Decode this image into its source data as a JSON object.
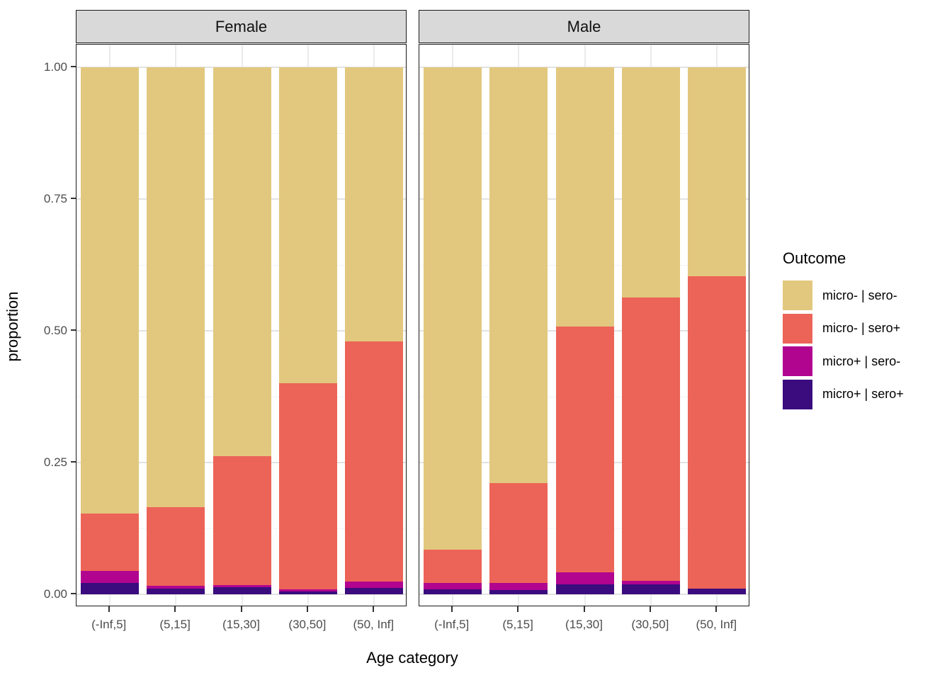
{
  "chart_data": {
    "type": "bar",
    "variant": "stacked_normalized_faceted",
    "title": "",
    "xlabel": "Age category",
    "ylabel": "proportion",
    "ylim": [
      0,
      1
    ],
    "yticks": [
      0,
      0.25,
      0.5,
      0.75,
      1.0
    ],
    "ytick_labels": [
      "0.00",
      "0.25",
      "0.50",
      "0.75",
      "1.00"
    ],
    "y_minor": [
      0.125,
      0.375,
      0.625,
      0.875
    ],
    "grid": "on",
    "categories": [
      "(-Inf,5]",
      "(5,15]",
      "(15,30]",
      "(30,50]",
      "(50, Inf]"
    ],
    "stack_order_bottom_to_top": [
      "micro+ | sero+",
      "micro+ | sero-",
      "micro- | sero+",
      "micro- | sero-"
    ],
    "palette": {
      "micro- | sero-": "#e2c87e",
      "micro- | sero+": "#ec6457",
      "micro+ | sero-": "#b1048f",
      "micro+ | sero+": "#3a0c7e"
    },
    "facets": [
      {
        "label": "Female",
        "series": [
          {
            "name": "micro- | sero-",
            "values": [
              0.847,
              0.835,
              0.738,
              0.599,
              0.52
            ]
          },
          {
            "name": "micro- | sero+",
            "values": [
              0.109,
              0.149,
              0.244,
              0.392,
              0.456
            ]
          },
          {
            "name": "micro+ | sero-",
            "values": [
              0.022,
              0.005,
              0.005,
              0.004,
              0.012
            ]
          },
          {
            "name": "micro+ | sero+",
            "values": [
              0.022,
              0.011,
              0.013,
              0.005,
              0.012
            ]
          }
        ]
      },
      {
        "label": "Male",
        "series": [
          {
            "name": "micro- | sero-",
            "values": [
              0.915,
              0.789,
              0.492,
              0.437,
              0.396
            ]
          },
          {
            "name": "micro- | sero+",
            "values": [
              0.064,
              0.19,
              0.467,
              0.538,
              0.593
            ]
          },
          {
            "name": "micro+ | sero-",
            "values": [
              0.012,
              0.013,
              0.022,
              0.006,
              0.0
            ]
          },
          {
            "name": "micro+ | sero+",
            "values": [
              0.009,
              0.008,
              0.019,
              0.019,
              0.011
            ]
          }
        ]
      }
    ],
    "legend": {
      "title": "Outcome",
      "position": "right",
      "entries": [
        {
          "label": "micro- | sero-",
          "color": "#e2c87e"
        },
        {
          "label": "micro- | sero+",
          "color": "#ec6457"
        },
        {
          "label": "micro+ | sero-",
          "color": "#b1048f"
        },
        {
          "label": "micro+ | sero+",
          "color": "#3a0c7e"
        }
      ]
    }
  }
}
